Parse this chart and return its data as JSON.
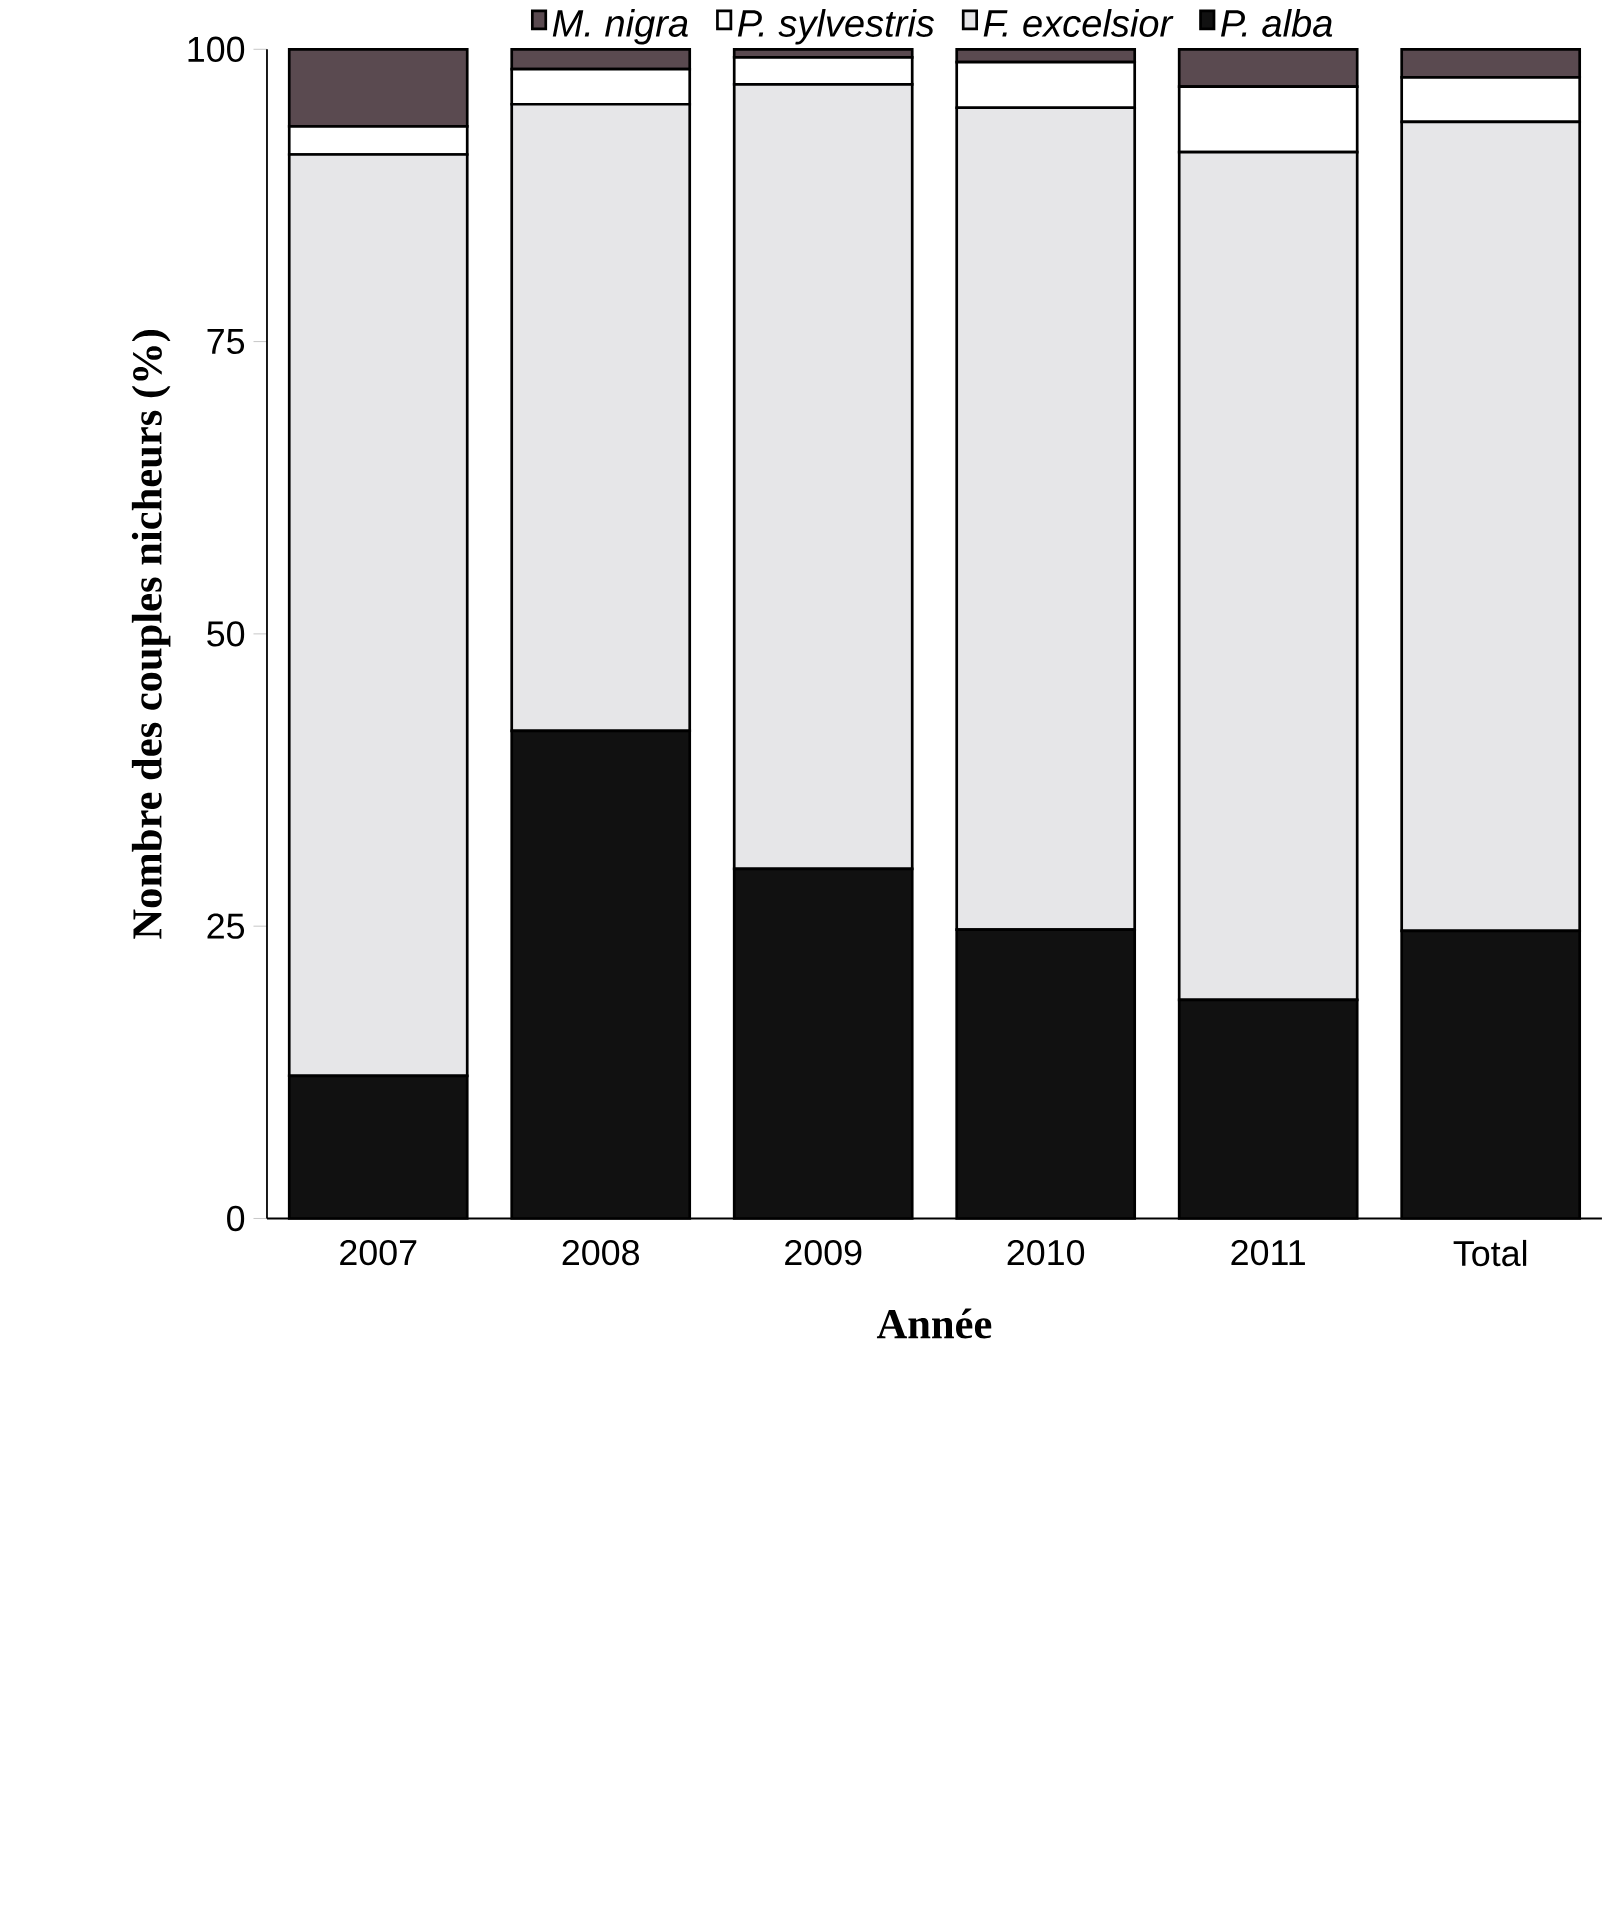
{
  "chart_data": {
    "type": "bar",
    "stacked": true,
    "xlabel": "Année",
    "ylabel": "Nombre des couples nicheurs (%)",
    "categories": [
      "2007",
      "2008",
      "2009",
      "2010",
      "2011",
      "Total"
    ],
    "series": [
      {
        "name": "P. alba",
        "color": "#111111",
        "values": [
          12.2,
          41.7,
          29.9,
          24.7,
          18.7,
          24.6
        ]
      },
      {
        "name": "F. excelsior",
        "color": "#e6e6e8",
        "values": [
          78.8,
          53.6,
          67.1,
          70.3,
          72.5,
          69.2
        ]
      },
      {
        "name": "P. sylvestris",
        "color": "#ffffff",
        "values": [
          2.4,
          3.0,
          2.3,
          3.9,
          5.6,
          3.8
        ]
      },
      {
        "name": "M. nigra",
        "color": "#5a4a50",
        "values": [
          6.6,
          1.7,
          0.7,
          1.1,
          3.2,
          2.4
        ]
      }
    ],
    "ylim": [
      0,
      100
    ],
    "yticks": [
      0,
      25,
      50,
      75,
      100
    ],
    "legend": "top"
  }
}
